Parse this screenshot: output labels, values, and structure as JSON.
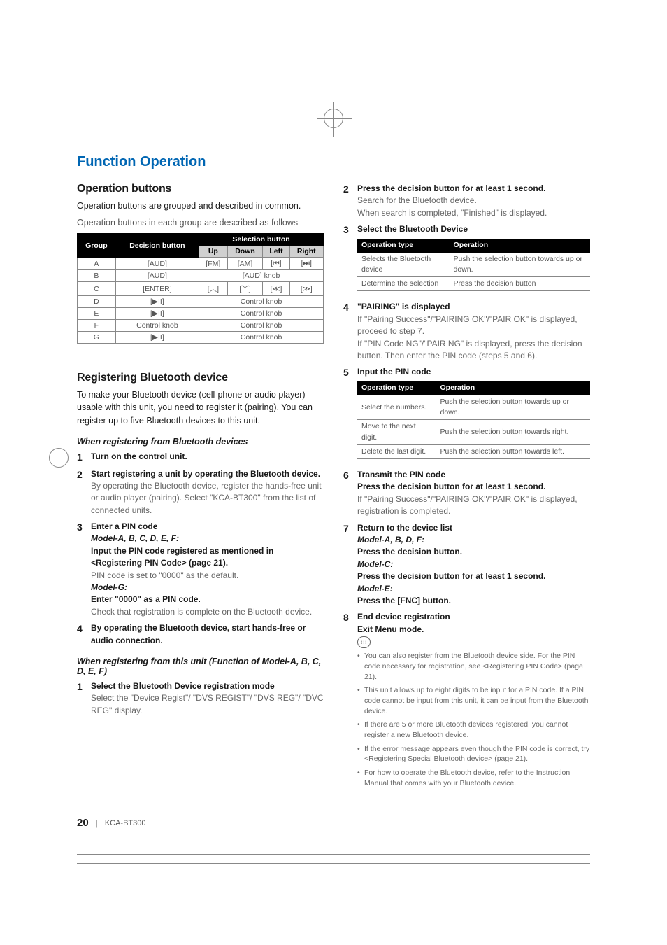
{
  "chapter_title": "Function Operation",
  "left": {
    "section1_title": "Operation buttons",
    "section1_p1": "Operation buttons are grouped and described in common.",
    "section1_p2": "Operation buttons in each group are described as follows",
    "table_headers": {
      "group": "Group",
      "decision": "Decision button",
      "selection": "Selection button",
      "up": "Up",
      "down": "Down",
      "left": "Left",
      "right": "Right"
    },
    "table_rows": [
      {
        "g": "A",
        "d": "[AUD]",
        "cells": [
          "[FM]",
          "[AM]",
          "[⏮]",
          "[⏭]"
        ]
      },
      {
        "g": "B",
        "d": "[AUD]",
        "span": "[AUD] knob"
      },
      {
        "g": "C",
        "d": "[ENTER]",
        "cells": [
          "[︿]",
          "[﹀]",
          "[≪]",
          "[≫]"
        ]
      },
      {
        "g": "D",
        "d": "[▶II]",
        "span": "Control knob"
      },
      {
        "g": "E",
        "d": "[▶II]",
        "span": "Control knob"
      },
      {
        "g": "F",
        "d": "Control knob",
        "span": "Control knob"
      },
      {
        "g": "G",
        "d": "[▶II]",
        "span": "Control knob"
      }
    ],
    "section2_title": "Registering Bluetooth device",
    "section2_p1": "To make your Bluetooth device (cell-phone or audio player) usable with this unit, you need to register it (pairing). You can register up to five Bluetooth devices to this unit.",
    "sub1": "When registering from Bluetooth devices",
    "s1": "Turn on the control unit.",
    "s2_bold": "Start registering a unit by operating the Bluetooth device.",
    "s2_light": "By operating the Bluetooth device, register the hands-free unit or audio player (pairing). Select \"KCA-BT300\" from the list of connected units.",
    "s3_bold1": "Enter a PIN code",
    "s3_model1": "Model-A, B, C, D, E, F:",
    "s3_bold2": "Input the PIN code registered as mentioned in <Registering PIN Code> (page 21).",
    "s3_light1": "PIN code is set to \"0000\" as the default.",
    "s3_model2": "Model-G:",
    "s3_bold3": "Enter \"0000\" as a PIN code.",
    "s3_light2": "Check that registration is complete on the Bluetooth device.",
    "s4_bold": "By operating the Bluetooth device, start hands-free or audio connection.",
    "sub2": "When registering from this unit (Function of Model-A, B, C, D, E, F)",
    "s1b_bold": "Select the Bluetooth Device registration mode",
    "s1b_light": "Select the \"Device Regist\"/ \"DVS REGIST\"/ \"DVS REG\"/ \"DVC REG\" display."
  },
  "right": {
    "s2_bold": "Press the decision button for at least 1 second.",
    "s2_light1": "Search for the Bluetooth device.",
    "s2_light2": "When search is completed, \"Finished\" is displayed.",
    "s3_bold": "Select the Bluetooth Device",
    "t1_h1": "Operation type",
    "t1_h2": "Operation",
    "t1_r1a": "Selects the Bluetooth device",
    "t1_r1b": "Push the selection button towards up or down.",
    "t1_r2a": "Determine the selection",
    "t1_r2b": "Press the decision button",
    "s4_bold": "\"PAIRING\" is displayed",
    "s4_light1": "If \"Pairing Success\"/\"PAIRING OK\"/\"PAIR OK\" is displayed, proceed to step 7.",
    "s4_light2": "If \"PIN Code NG\"/\"PAIR NG\" is displayed, press the decision button. Then enter the PIN code (steps 5 and 6).",
    "s5_bold": "Input the PIN code",
    "t2_r1a": "Select the numbers.",
    "t2_r1b": "Push the selection button towards up or down.",
    "t2_r2a": "Move to the next digit.",
    "t2_r2b": "Push the selection button towards right.",
    "t2_r3a": "Delete the last digit.",
    "t2_r3b": "Push the selection button towards left.",
    "s6_bold1": "Transmit the PIN code",
    "s6_bold2": "Press the decision button for at least 1 second.",
    "s6_light": "If \"Pairing Success\"/\"PAIRING OK\"/\"PAIR OK\" is displayed, registration is completed.",
    "s7_bold1": "Return to the device list",
    "s7_m1": "Model-A, B, D, F:",
    "s7_b1": "Press the decision button.",
    "s7_m2": "Model-C:",
    "s7_b2": "Press the decision button for at least 1 second.",
    "s7_m3": "Model-E:",
    "s7_b3": "Press the [FNC] button.",
    "s8_bold1": "End device registration",
    "s8_bold2": "Exit Menu mode.",
    "notes": [
      "You can also register from the Bluetooth device side. For the PIN code necessary for registration, see <Registering PIN Code> (page 21).",
      "This unit allows up to eight digits to be input for a PIN code. If a PIN code cannot be input from this unit, it can be input from the Bluetooth device.",
      "If there are 5 or more Bluetooth devices registered, you cannot register a new Bluetooth device.",
      "If the error message appears even though the PIN code is correct, try <Registering Special Bluetooth device> (page 21).",
      "For how to operate the Bluetooth device, refer to the Instruction Manual that comes with your Bluetooth device."
    ]
  },
  "footer": {
    "page": "20",
    "model": "KCA-BT300"
  }
}
